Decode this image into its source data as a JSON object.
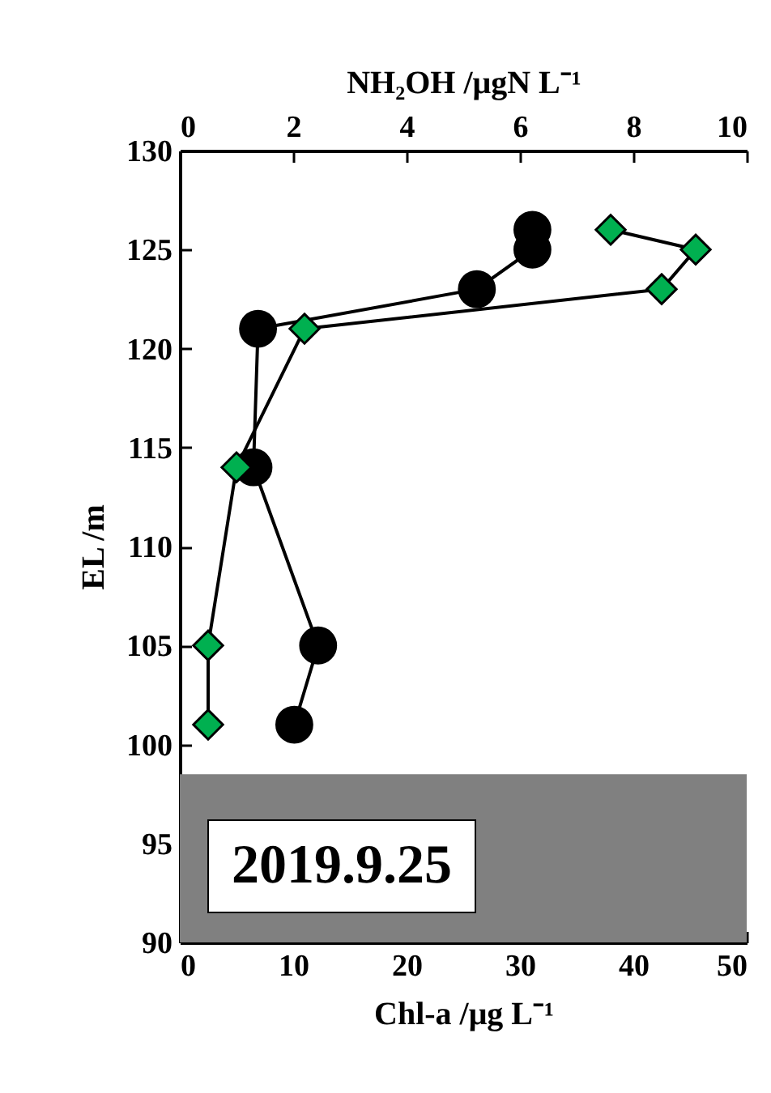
{
  "chart_data": {
    "type": "line",
    "xlabel": "Chl-a /μg L⁻¹",
    "x2label": "NH₂OH /μgN L⁻¹",
    "ylabel": "EL /m",
    "xlim": [
      0,
      50
    ],
    "xticks": [
      0,
      10,
      20,
      30,
      40,
      50
    ],
    "x2lim": [
      0,
      10
    ],
    "x2ticks": [
      0,
      2,
      4,
      6,
      8,
      10
    ],
    "ylim": [
      90,
      130
    ],
    "yticks": [
      90,
      95,
      100,
      105,
      110,
      115,
      120,
      125,
      130
    ],
    "series": [
      {
        "marker": "circle",
        "color": "#000000",
        "x": [
          31.1,
          31.1,
          26.2,
          6.9,
          6.5,
          12.2,
          10.1
        ],
        "values": [
          126,
          125,
          123,
          121,
          114,
          105,
          101
        ]
      },
      {
        "marker": "diamond",
        "color": "#00b050",
        "axis": "x2",
        "x": [
          7.6,
          9.1,
          8.5,
          2.2,
          1.0,
          0.5,
          0.5
        ],
        "values": [
          126,
          125,
          123,
          121,
          114,
          105,
          101
        ]
      }
    ],
    "bands": [
      {
        "axis": "y",
        "from": 90,
        "to": 98.5,
        "color": "#808080"
      }
    ],
    "annotations": [
      "2019.9.25"
    ]
  }
}
